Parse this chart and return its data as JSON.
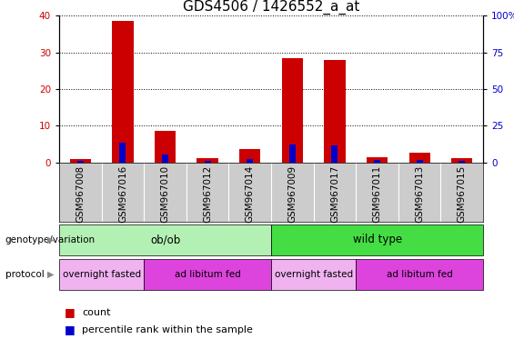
{
  "title": "GDS4506 / 1426552_a_at",
  "samples": [
    "GSM967008",
    "GSM967016",
    "GSM967010",
    "GSM967012",
    "GSM967014",
    "GSM967009",
    "GSM967017",
    "GSM967011",
    "GSM967013",
    "GSM967015"
  ],
  "count_values": [
    1.0,
    38.5,
    8.5,
    1.2,
    3.5,
    28.5,
    28.0,
    1.5,
    2.5,
    1.2
  ],
  "percentile_values": [
    1.0,
    13.5,
    5.5,
    1.2,
    2.0,
    12.0,
    11.5,
    1.5,
    1.5,
    1.2
  ],
  "ylim_left": [
    0,
    40
  ],
  "ylim_right": [
    0,
    100
  ],
  "yticks_left": [
    0,
    10,
    20,
    30,
    40
  ],
  "ytick_labels_right": [
    "0",
    "25",
    "50",
    "75",
    "100%"
  ],
  "yticks_right": [
    0,
    25,
    50,
    75,
    100
  ],
  "bar_color_red": "#cc0000",
  "bar_color_blue": "#0000cc",
  "bar_width": 0.5,
  "blue_bar_width": 0.15,
  "genotype_groups": [
    {
      "label": "ob/ob",
      "start": 0,
      "end": 5,
      "color": "#b3f0b3"
    },
    {
      "label": "wild type",
      "start": 5,
      "end": 10,
      "color": "#44dd44"
    }
  ],
  "protocol_groups": [
    {
      "label": "overnight fasted",
      "start": 0,
      "end": 2,
      "color": "#f0b3f0"
    },
    {
      "label": "ad libitum fed",
      "start": 2,
      "end": 5,
      "color": "#dd44dd"
    },
    {
      "label": "overnight fasted",
      "start": 5,
      "end": 7,
      "color": "#f0b3f0"
    },
    {
      "label": "ad libitum fed",
      "start": 7,
      "end": 10,
      "color": "#dd44dd"
    }
  ],
  "legend_count_label": "count",
  "legend_pct_label": "percentile rank within the sample",
  "genotype_label": "genotype/variation",
  "protocol_label": "protocol",
  "title_fontsize": 11,
  "tick_fontsize": 7.5,
  "label_fontsize": 8,
  "xtick_bg_color": "#cccccc",
  "grid_linestyle": "dotted"
}
